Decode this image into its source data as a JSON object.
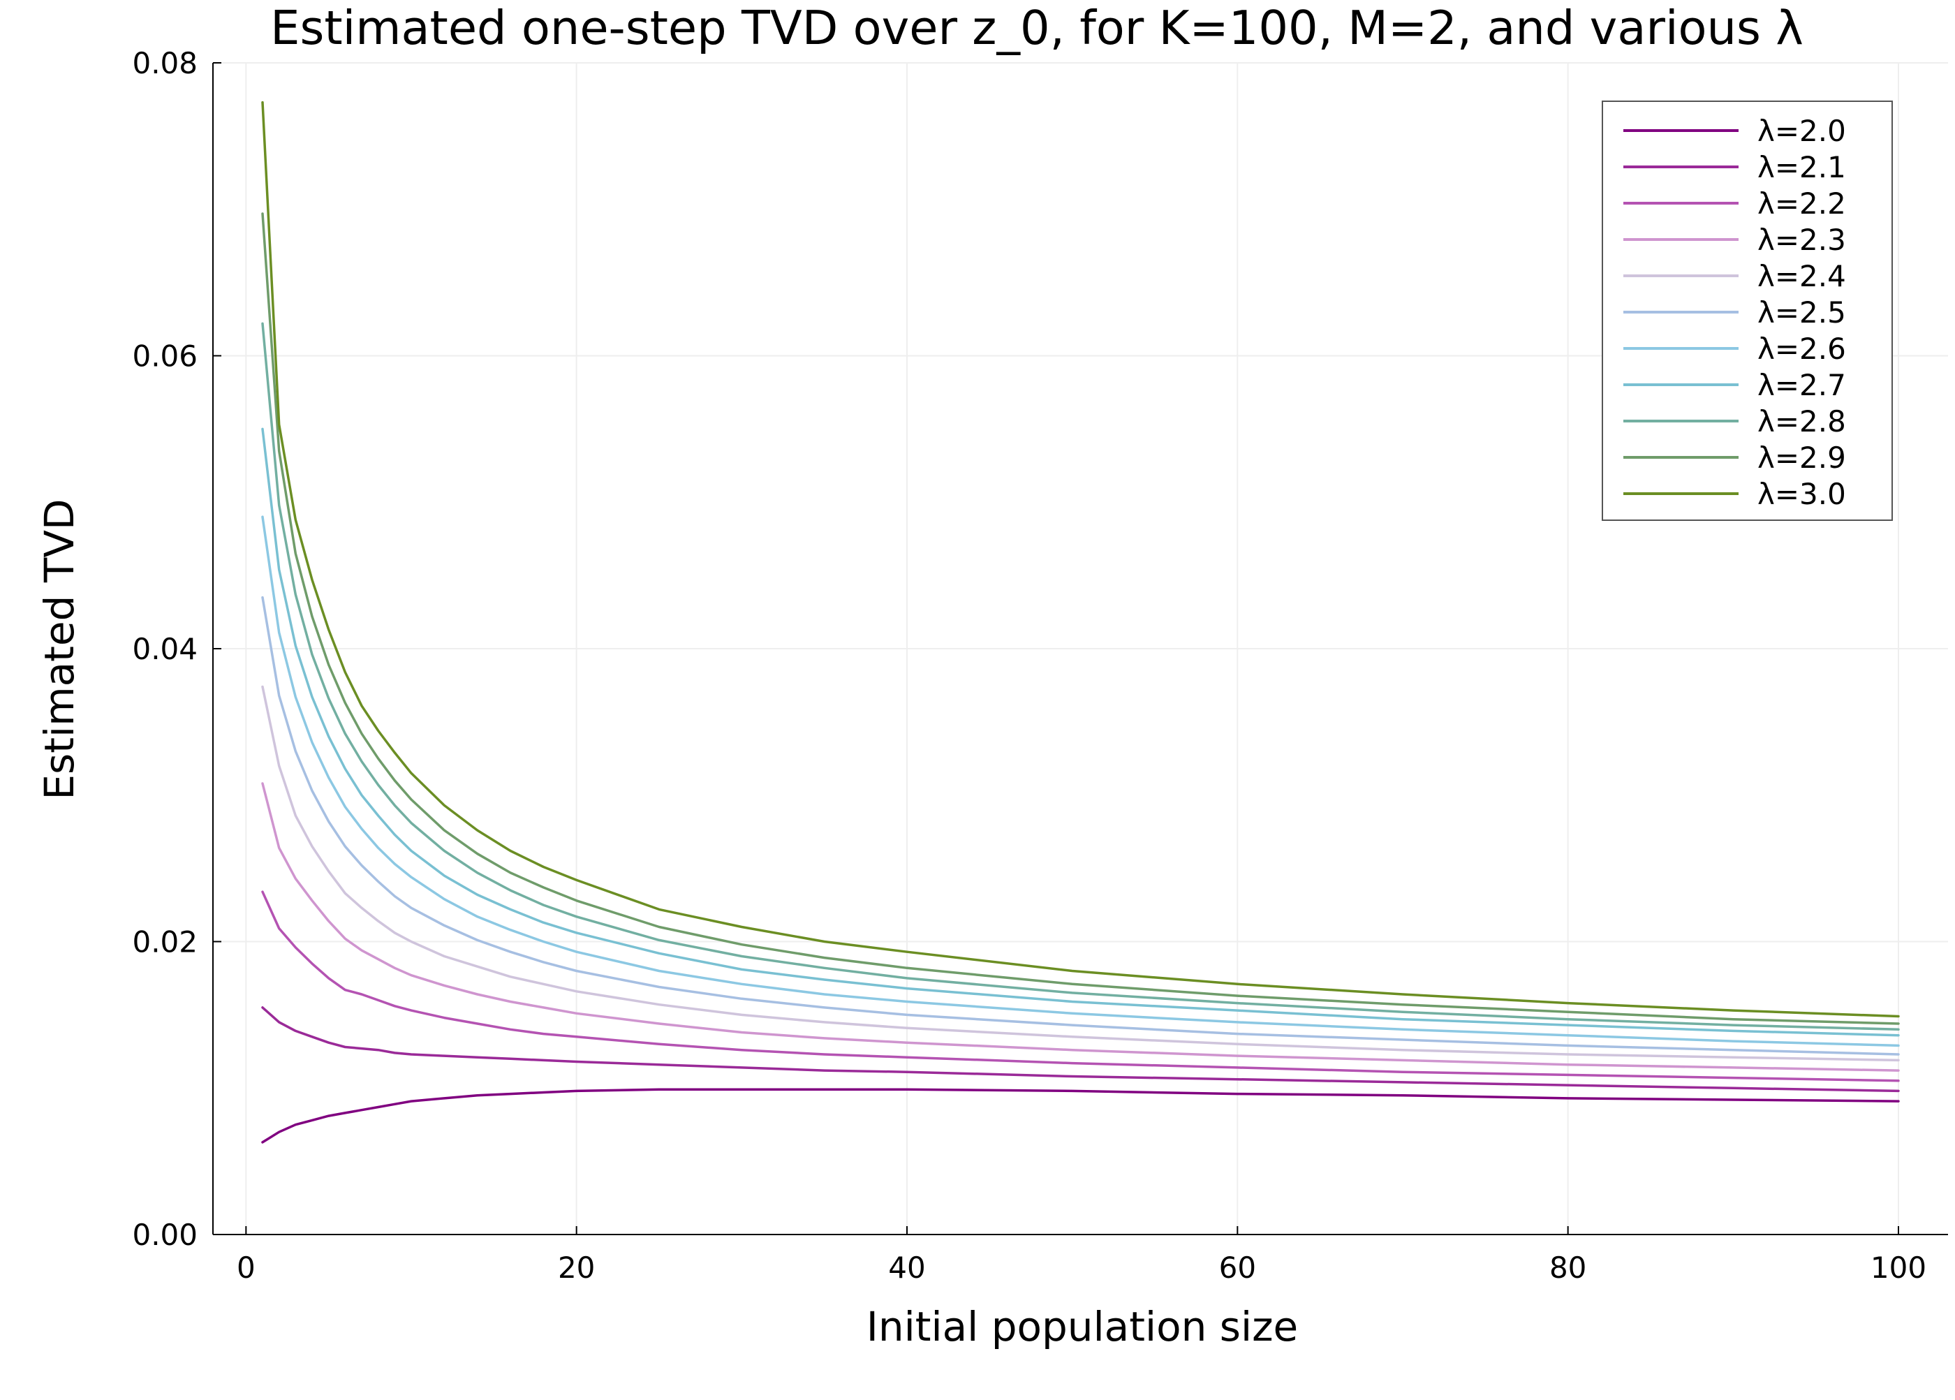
{
  "chart_data": {
    "type": "line",
    "title": "Estimated one-step TVD over z_0, for K=100, M=2, and various λ",
    "xlabel": "Initial population size",
    "ylabel": "Estimated TVD",
    "xlim": [
      -2,
      103
    ],
    "ylim": [
      0,
      0.08
    ],
    "x_ticks": [
      0,
      20,
      40,
      60,
      80,
      100
    ],
    "x_tick_labels": [
      "0",
      "20",
      "40",
      "60",
      "80",
      "100"
    ],
    "y_ticks": [
      0,
      0.02,
      0.04,
      0.06,
      0.08
    ],
    "y_tick_labels": [
      "0.00",
      "0.02",
      "0.04",
      "0.06",
      "0.08"
    ],
    "grid": true,
    "legend_position": "top-right",
    "x": [
      1,
      2,
      3,
      4,
      5,
      6,
      7,
      8,
      9,
      10,
      12,
      14,
      16,
      18,
      20,
      25,
      30,
      35,
      40,
      50,
      60,
      70,
      80,
      90,
      100
    ],
    "series": [
      {
        "name": "λ=2.0",
        "color": "#800080",
        "values": [
          0.0063,
          0.007,
          0.0075,
          0.0078,
          0.0081,
          0.0083,
          0.0085,
          0.0087,
          0.0089,
          0.0091,
          0.0093,
          0.0095,
          0.0096,
          0.0097,
          0.0098,
          0.0099,
          0.0099,
          0.0099,
          0.0099,
          0.0098,
          0.0096,
          0.0095,
          0.0093,
          0.0092,
          0.0091
        ]
      },
      {
        "name": "λ=2.1",
        "color": "#9a2a98",
        "values": [
          0.0155,
          0.0145,
          0.0139,
          0.0135,
          0.0131,
          0.0128,
          0.0127,
          0.0126,
          0.0124,
          0.0123,
          0.0122,
          0.0121,
          0.012,
          0.0119,
          0.0118,
          0.0116,
          0.0114,
          0.0112,
          0.0111,
          0.0108,
          0.0106,
          0.0104,
          0.0102,
          0.01,
          0.0098
        ]
      },
      {
        "name": "λ=2.2",
        "color": "#b453b2",
        "values": [
          0.0234,
          0.0209,
          0.0196,
          0.0185,
          0.0175,
          0.0167,
          0.0164,
          0.016,
          0.0156,
          0.0153,
          0.0148,
          0.0144,
          0.014,
          0.0137,
          0.0135,
          0.013,
          0.0126,
          0.0123,
          0.0121,
          0.0117,
          0.0114,
          0.0111,
          0.0109,
          0.0107,
          0.0105
        ]
      },
      {
        "name": "λ=2.3",
        "color": "#cf95cf",
        "values": [
          0.0308,
          0.0264,
          0.0243,
          0.0228,
          0.0214,
          0.0202,
          0.0194,
          0.0188,
          0.0182,
          0.0177,
          0.017,
          0.0164,
          0.0159,
          0.0155,
          0.0151,
          0.0144,
          0.0138,
          0.0134,
          0.0131,
          0.0126,
          0.0122,
          0.0119,
          0.0116,
          0.0114,
          0.0112
        ]
      },
      {
        "name": "λ=2.4",
        "color": "#cfc4dc",
        "values": [
          0.0374,
          0.032,
          0.0286,
          0.0265,
          0.0248,
          0.0233,
          0.0223,
          0.0214,
          0.0206,
          0.02,
          0.019,
          0.0183,
          0.0176,
          0.0171,
          0.0166,
          0.0157,
          0.015,
          0.0145,
          0.0141,
          0.0135,
          0.013,
          0.0126,
          0.0123,
          0.0121,
          0.0119
        ]
      },
      {
        "name": "λ=2.5",
        "color": "#a6bfe2",
        "values": [
          0.0435,
          0.0368,
          0.033,
          0.0303,
          0.0282,
          0.0265,
          0.0252,
          0.0241,
          0.0231,
          0.0223,
          0.0211,
          0.0201,
          0.0193,
          0.0186,
          0.018,
          0.0169,
          0.0161,
          0.0155,
          0.015,
          0.0143,
          0.0137,
          0.0133,
          0.0129,
          0.0126,
          0.0123
        ]
      },
      {
        "name": "λ=2.6",
        "color": "#8cc8e3",
        "values": [
          0.049,
          0.0411,
          0.0367,
          0.0336,
          0.0312,
          0.0292,
          0.0277,
          0.0264,
          0.0253,
          0.0244,
          0.0229,
          0.0217,
          0.0208,
          0.02,
          0.0193,
          0.018,
          0.0171,
          0.0164,
          0.0159,
          0.0151,
          0.0145,
          0.014,
          0.0136,
          0.0132,
          0.0129
        ]
      },
      {
        "name": "λ=2.7",
        "color": "#79c0d2",
        "values": [
          0.055,
          0.0454,
          0.0402,
          0.0367,
          0.034,
          0.0318,
          0.03,
          0.0286,
          0.0273,
          0.0262,
          0.0245,
          0.0232,
          0.0222,
          0.0213,
          0.0206,
          0.0192,
          0.0181,
          0.0174,
          0.0168,
          0.0159,
          0.0153,
          0.0147,
          0.0143,
          0.0139,
          0.0136
        ]
      },
      {
        "name": "λ=2.8",
        "color": "#72afa1",
        "values": [
          0.0622,
          0.0498,
          0.0437,
          0.0396,
          0.0366,
          0.0342,
          0.0323,
          0.0307,
          0.0293,
          0.0281,
          0.0262,
          0.0247,
          0.0235,
          0.0225,
          0.0217,
          0.0201,
          0.019,
          0.0182,
          0.0175,
          0.0165,
          0.0158,
          0.0152,
          0.0147,
          0.0143,
          0.014
        ]
      },
      {
        "name": "λ=2.9",
        "color": "#6f9c6a",
        "values": [
          0.0697,
          0.0535,
          0.0465,
          0.0422,
          0.0389,
          0.0363,
          0.0342,
          0.0325,
          0.031,
          0.0297,
          0.0276,
          0.026,
          0.0247,
          0.0237,
          0.0228,
          0.021,
          0.0198,
          0.0189,
          0.0182,
          0.0171,
          0.0163,
          0.0157,
          0.0152,
          0.0147,
          0.0144
        ]
      },
      {
        "name": "λ=3.0",
        "color": "#6b8e23",
        "values": [
          0.0773,
          0.0553,
          0.0488,
          0.0447,
          0.0413,
          0.0384,
          0.0361,
          0.0344,
          0.0329,
          0.0315,
          0.0293,
          0.0276,
          0.0262,
          0.0251,
          0.0242,
          0.0222,
          0.021,
          0.02,
          0.0193,
          0.018,
          0.0171,
          0.0164,
          0.0158,
          0.0153,
          0.0149
        ]
      }
    ]
  }
}
